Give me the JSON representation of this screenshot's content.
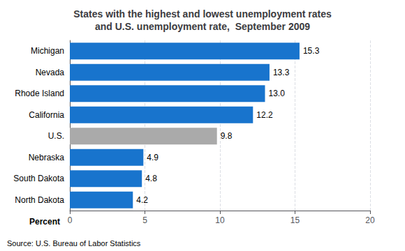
{
  "chart_data": {
    "type": "bar",
    "orientation": "horizontal",
    "title": "States with the highest and lowest unemployment rates\nand U.S. unemployment rate,  September 2009",
    "categories": [
      "Michigan",
      "Nevada",
      "Rhode Island",
      "California",
      "U.S.",
      "Nebraska",
      "South Dakota",
      "North Dakota"
    ],
    "values": [
      15.3,
      13.3,
      13.0,
      12.2,
      9.8,
      4.9,
      4.8,
      4.2
    ],
    "value_labels": [
      "15.3",
      "13.3",
      "13.0",
      "12.2",
      "9.8",
      "4.9",
      "4.8",
      "4.2"
    ],
    "data_labels": true,
    "colors": [
      "#1874CD",
      "#1874CD",
      "#1874CD",
      "#1874CD",
      "#AAAAAA",
      "#1874CD",
      "#1874CD",
      "#1874CD"
    ],
    "xlabel": "Percent",
    "xlim": [
      0,
      20
    ],
    "xticks": [
      0,
      5,
      10,
      15,
      20
    ],
    "grid": true,
    "annotation": "Source: U.S. Bureau of Labor Statistics"
  }
}
